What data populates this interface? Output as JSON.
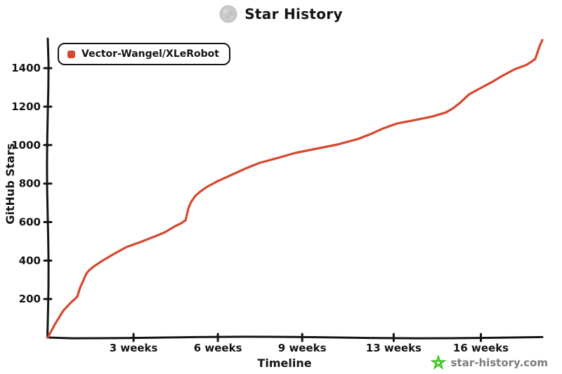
{
  "title": {
    "text": "Star History"
  },
  "legend": {
    "items": [
      {
        "label": "Vector-Wangel/XLeRobot",
        "color": "#d5482e"
      }
    ]
  },
  "watermark": {
    "text": "star-history.com",
    "star_color": "#3ec221",
    "text_color": "#7d7d7d"
  },
  "chart_data": {
    "type": "line",
    "title": "Star History",
    "xlabel": "Timeline",
    "ylabel": "GitHub Stars",
    "x_unit": "weeks",
    "xlim": [
      0,
      17.3
    ],
    "ylim": [
      0,
      1550
    ],
    "grid": false,
    "legend_position": "top-left",
    "axis_color": "#141414",
    "x_ticks": [
      {
        "label": "3 weeks",
        "week": 3.0
      },
      {
        "label": "6 weeks",
        "week": 5.95
      },
      {
        "label": "9 weeks",
        "week": 8.9
      },
      {
        "label": "13 weeks",
        "week": 12.1
      },
      {
        "label": "16 weeks",
        "week": 15.15
      }
    ],
    "y_ticks": [
      200,
      400,
      600,
      800,
      1000,
      1200,
      1400
    ],
    "series": [
      {
        "name": "Vector-Wangel/XLeRobot",
        "color": "#d5482e",
        "points": [
          [
            0,
            0
          ],
          [
            0.25,
            69
          ],
          [
            0.54,
            139
          ],
          [
            0.79,
            179
          ],
          [
            1.03,
            211
          ],
          [
            1.13,
            259
          ],
          [
            1.23,
            292
          ],
          [
            1.35,
            332
          ],
          [
            1.45,
            350
          ],
          [
            1.6,
            368
          ],
          [
            1.89,
            397
          ],
          [
            2.26,
            430
          ],
          [
            2.75,
            470
          ],
          [
            3.24,
            496
          ],
          [
            3.74,
            525
          ],
          [
            4.1,
            547
          ],
          [
            4.42,
            576
          ],
          [
            4.67,
            594
          ],
          [
            4.82,
            609
          ],
          [
            4.92,
            671
          ],
          [
            5.01,
            704
          ],
          [
            5.16,
            736
          ],
          [
            5.33,
            758
          ],
          [
            5.58,
            784
          ],
          [
            5.95,
            813
          ],
          [
            6.44,
            846
          ],
          [
            6.93,
            879
          ],
          [
            7.42,
            908
          ],
          [
            8.04,
            933
          ],
          [
            8.65,
            959
          ],
          [
            9.39,
            981
          ],
          [
            10.13,
            1003
          ],
          [
            10.86,
            1032
          ],
          [
            11.35,
            1061
          ],
          [
            11.72,
            1086
          ],
          [
            12.21,
            1112
          ],
          [
            12.83,
            1130
          ],
          [
            13.44,
            1148
          ],
          [
            13.93,
            1170
          ],
          [
            14.18,
            1192
          ],
          [
            14.43,
            1221
          ],
          [
            14.75,
            1265
          ],
          [
            15.16,
            1298
          ],
          [
            15.53,
            1327
          ],
          [
            15.9,
            1360
          ],
          [
            16.32,
            1393
          ],
          [
            16.76,
            1418
          ],
          [
            17.05,
            1447
          ],
          [
            17.15,
            1491
          ],
          [
            17.23,
            1524
          ],
          [
            17.3,
            1546
          ]
        ]
      }
    ]
  }
}
